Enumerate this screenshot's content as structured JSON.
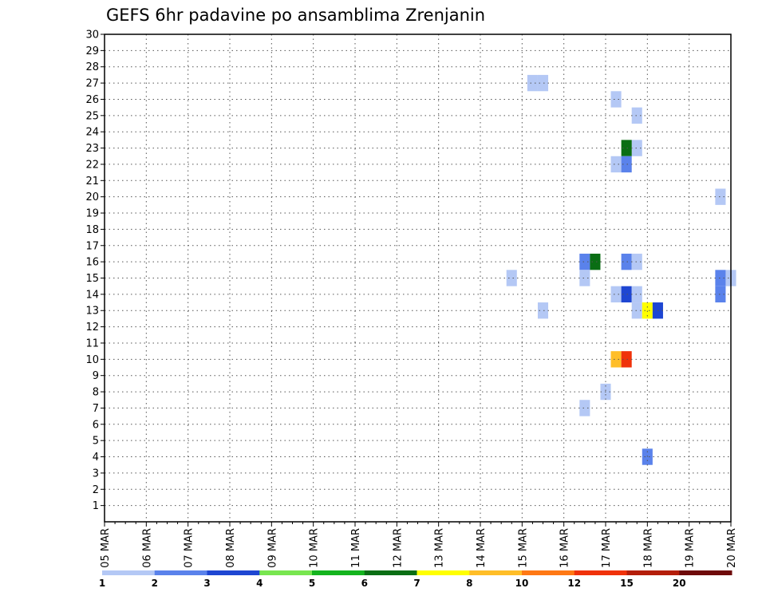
{
  "chart_data": {
    "type": "heatmap",
    "title": "GEFS 6hr padavine po ansamblima Zrenjanin",
    "xlabel": "",
    "ylabel": "",
    "ylim": [
      0,
      30
    ],
    "yticks": [
      1,
      2,
      3,
      4,
      5,
      6,
      7,
      8,
      9,
      10,
      11,
      12,
      13,
      14,
      15,
      16,
      17,
      18,
      19,
      20,
      21,
      22,
      23,
      24,
      25,
      26,
      27,
      28,
      29,
      30
    ],
    "x_date_ticks": [
      "05 MAR",
      "06 MAR",
      "07 MAR",
      "08 MAR",
      "09 MAR",
      "10 MAR",
      "11 MAR",
      "12 MAR",
      "13 MAR",
      "14 MAR",
      "15 MAR",
      "16 MAR",
      "17 MAR",
      "18 MAR",
      "19 MAR",
      "20 MAR"
    ],
    "x_unit": "days since 05 MAR 00z",
    "grid": true,
    "colorbar": {
      "bounds": [
        1,
        2,
        3,
        4,
        5,
        6,
        7,
        8,
        10,
        12,
        15,
        20
      ],
      "labels": [
        "1",
        "2",
        "3",
        "4",
        "5",
        "6",
        "7",
        "8",
        "10",
        "12",
        "15",
        "20"
      ],
      "colors": [
        "#b4c8f5",
        "#5a82eb",
        "#1e46d2",
        "#78e650",
        "#14b41e",
        "#0a6e14",
        "#ffff00",
        "#ffbe28",
        "#ff7814",
        "#f0320a",
        "#b41e0a",
        "#6e0a0a"
      ]
    },
    "cells": [
      {
        "x": 10.25,
        "member": 27,
        "mm": 1.5
      },
      {
        "x": 10.5,
        "member": 27,
        "mm": 1.5
      },
      {
        "x": 12.25,
        "member": 26,
        "mm": 1.5
      },
      {
        "x": 12.75,
        "member": 25,
        "mm": 1.5
      },
      {
        "x": 12.75,
        "member": 23,
        "mm": 1.5
      },
      {
        "x": 12.5,
        "member": 23,
        "mm": 6
      },
      {
        "x": 12.25,
        "member": 22,
        "mm": 1.5
      },
      {
        "x": 12.5,
        "member": 22,
        "mm": 2.5
      },
      {
        "x": 14.75,
        "member": 20,
        "mm": 1.5
      },
      {
        "x": 11.5,
        "member": 16,
        "mm": 2.5
      },
      {
        "x": 11.75,
        "member": 16,
        "mm": 6
      },
      {
        "x": 12.5,
        "member": 16,
        "mm": 2.5
      },
      {
        "x": 12.75,
        "member": 16,
        "mm": 1.5
      },
      {
        "x": 9.75,
        "member": 15,
        "mm": 1.5
      },
      {
        "x": 11.5,
        "member": 15,
        "mm": 1.5
      },
      {
        "x": 14.75,
        "member": 15,
        "mm": 2.5
      },
      {
        "x": 15.0,
        "member": 15,
        "mm": 1.5
      },
      {
        "x": 12.25,
        "member": 14,
        "mm": 1.5
      },
      {
        "x": 12.5,
        "member": 14,
        "mm": 3.5
      },
      {
        "x": 12.75,
        "member": 14,
        "mm": 1.5
      },
      {
        "x": 14.75,
        "member": 14,
        "mm": 2.5
      },
      {
        "x": 10.5,
        "member": 13,
        "mm": 1.5
      },
      {
        "x": 12.75,
        "member": 13,
        "mm": 1.5
      },
      {
        "x": 13.0,
        "member": 13,
        "mm": 7.5
      },
      {
        "x": 13.25,
        "member": 13,
        "mm": 3.5
      },
      {
        "x": 12.25,
        "member": 10,
        "mm": 9
      },
      {
        "x": 12.5,
        "member": 10,
        "mm": 13
      },
      {
        "x": 12.0,
        "member": 8,
        "mm": 1.5
      },
      {
        "x": 11.5,
        "member": 7,
        "mm": 1.5
      },
      {
        "x": 13.0,
        "member": 4,
        "mm": 2.5
      }
    ]
  }
}
